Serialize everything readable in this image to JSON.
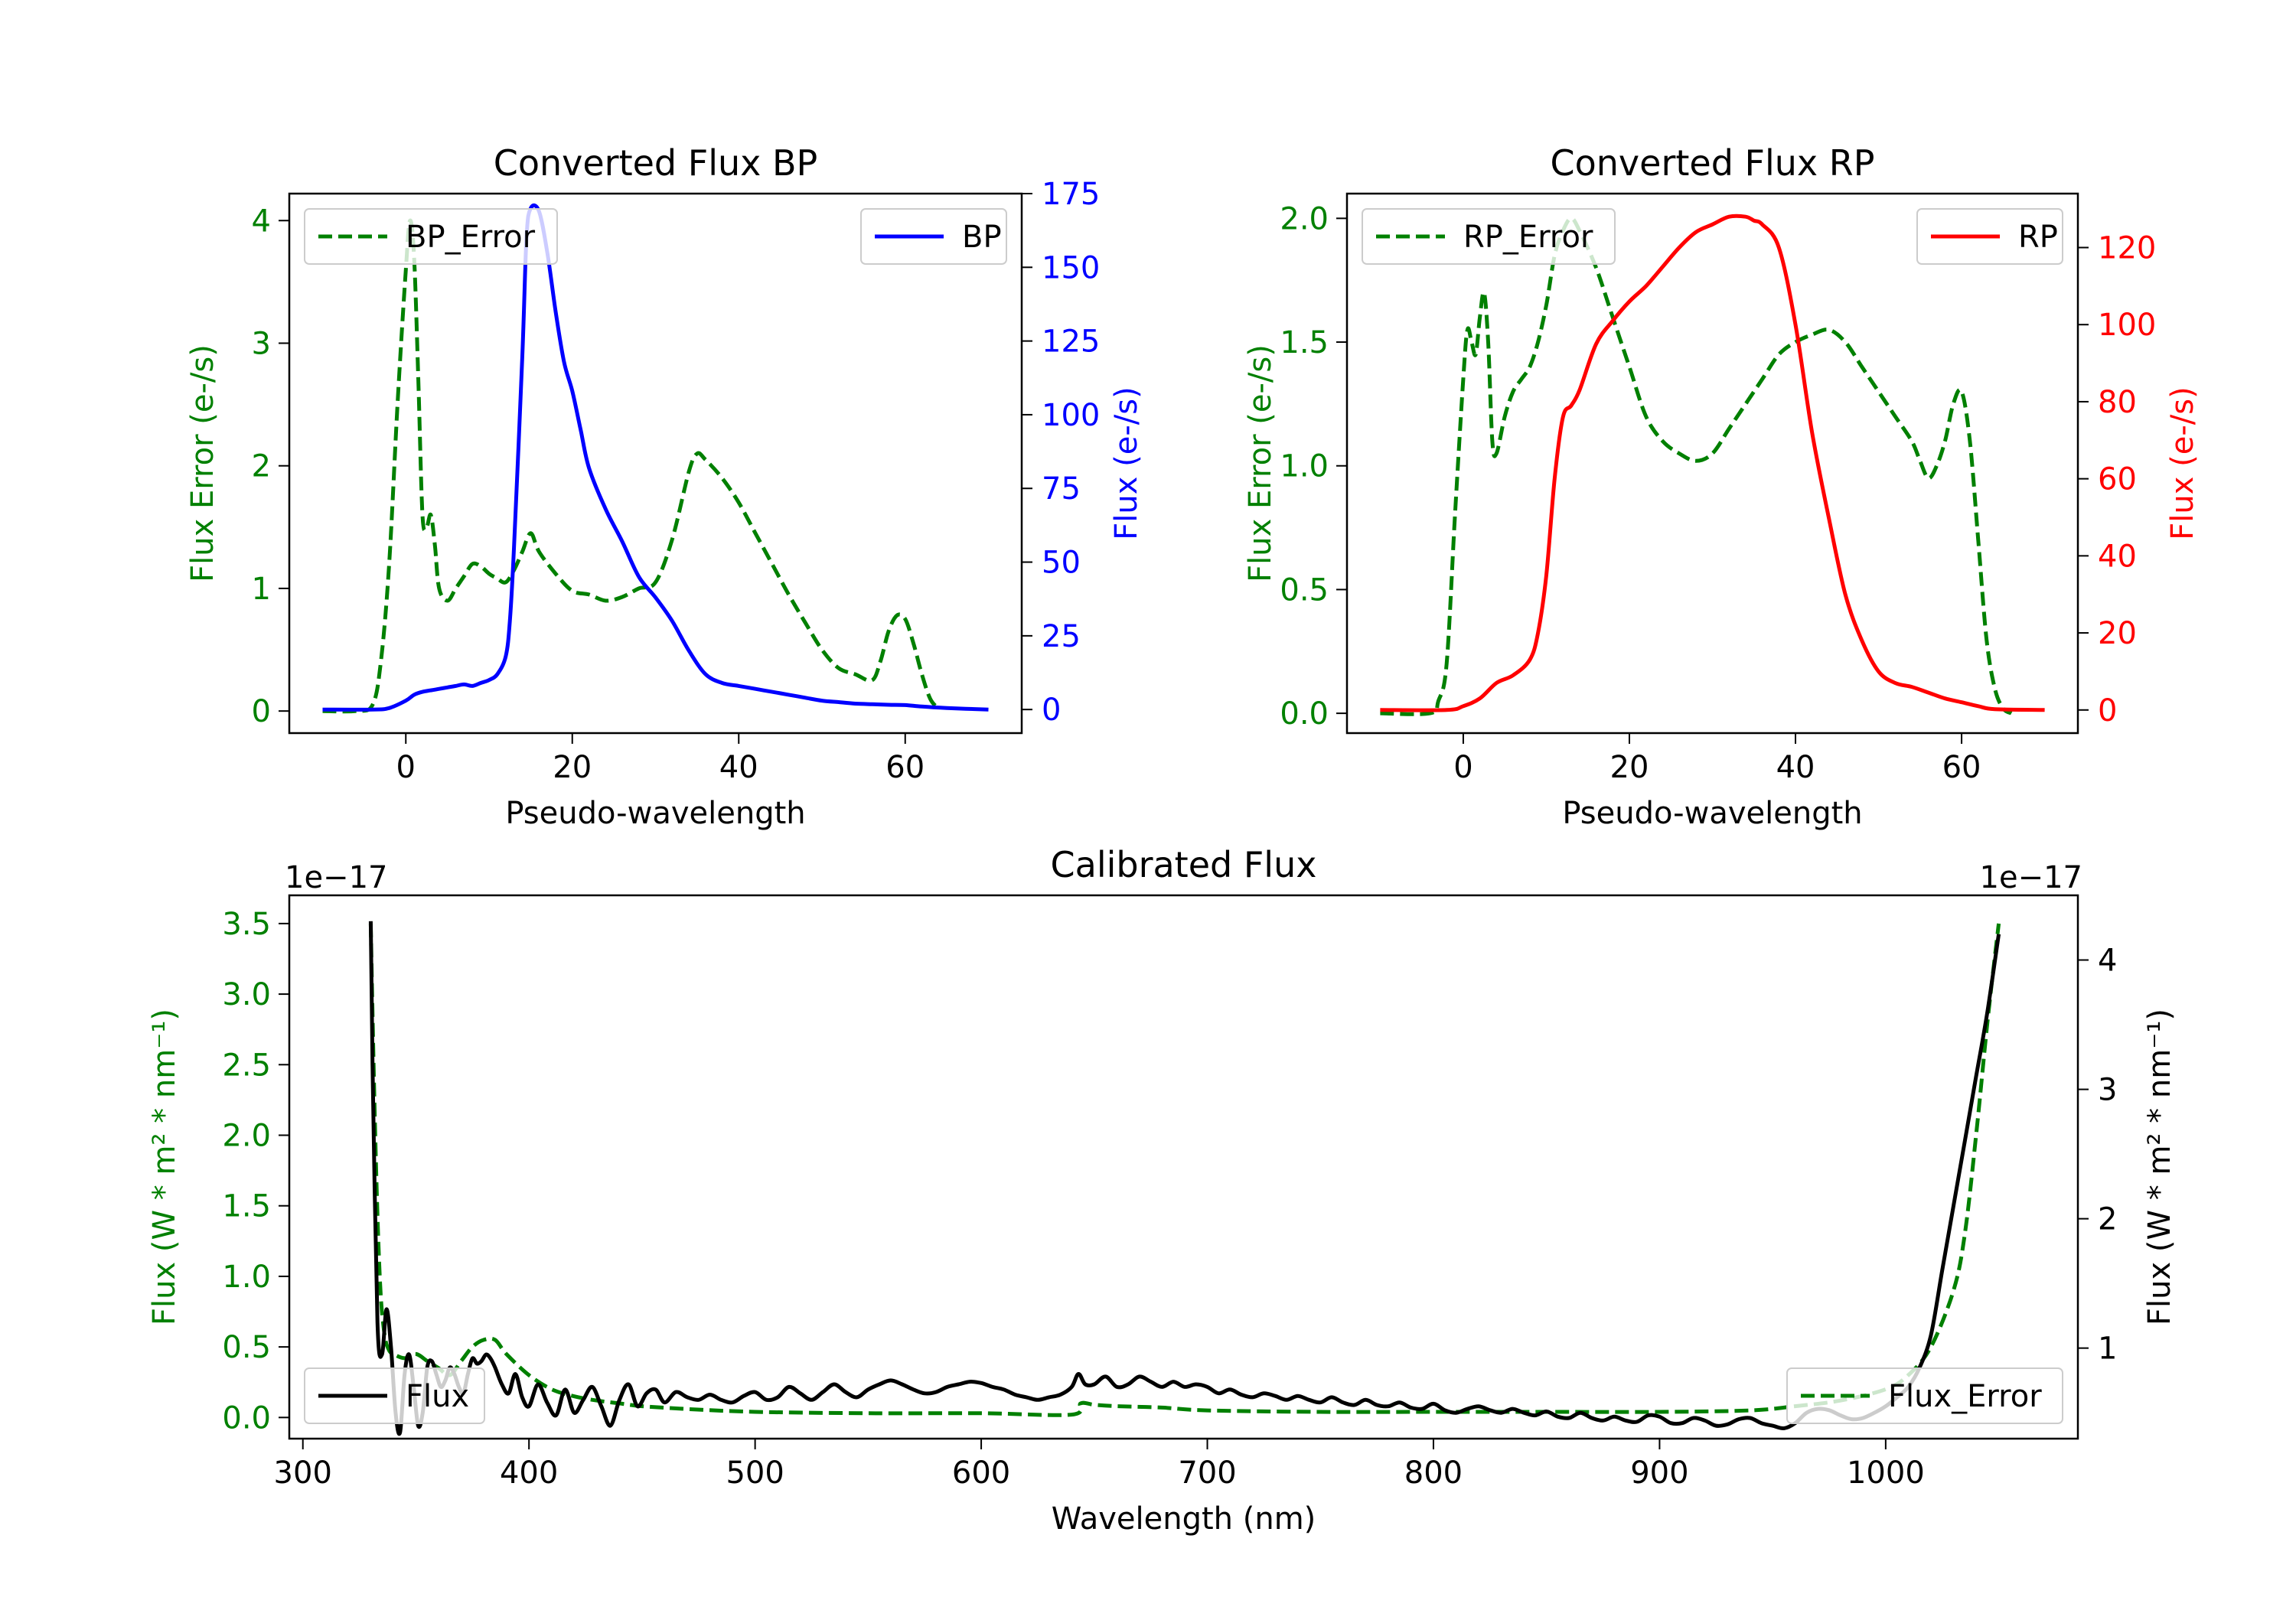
{
  "chart_data": [
    {
      "id": "bp",
      "type": "line",
      "title": "Converted Flux BP",
      "xlabel": "Pseudo-wavelength",
      "xlim": [
        -14,
        74
      ],
      "xticks": [
        0,
        20,
        40,
        60
      ],
      "left_axis": {
        "label": "Flux Error (e-/s)",
        "color": "#008000",
        "lim": [
          -0.18,
          4.22
        ],
        "ticks": [
          0,
          1,
          2,
          3,
          4
        ]
      },
      "right_axis": {
        "label": "Flux (e-/s)",
        "color": "#0000ff",
        "lim": [
          -8,
          175
        ],
        "ticks": [
          0,
          25,
          50,
          75,
          100,
          125,
          150,
          175
        ]
      },
      "legend_left": "top-left",
      "legend_right": "top-right",
      "series": [
        {
          "name": "BP_Error",
          "axis": "left",
          "color": "#008000",
          "dashed": true,
          "x": [
            -10,
            -6,
            -4,
            -3,
            -2,
            -1,
            0,
            0.5,
            1,
            1.5,
            2,
            2.5,
            3,
            3.5,
            4,
            5,
            6,
            7,
            8,
            9,
            10,
            11,
            12,
            13,
            14,
            15,
            16,
            18,
            20,
            22,
            24,
            26,
            28,
            30,
            32,
            34,
            35,
            36,
            38,
            40,
            42,
            44,
            46,
            48,
            50,
            52,
            54,
            56,
            57,
            58,
            59,
            60,
            61,
            62,
            63,
            64
          ],
          "y": [
            0,
            0,
            0.05,
            0.4,
            1.2,
            2.5,
            3.6,
            4.0,
            3.7,
            2.7,
            1.6,
            1.5,
            1.6,
            1.35,
            1.0,
            0.9,
            1.0,
            1.1,
            1.2,
            1.18,
            1.12,
            1.08,
            1.05,
            1.15,
            1.3,
            1.45,
            1.3,
            1.12,
            0.98,
            0.95,
            0.9,
            0.93,
            1.0,
            1.05,
            1.4,
            1.95,
            2.1,
            2.05,
            1.9,
            1.7,
            1.45,
            1.2,
            0.95,
            0.72,
            0.5,
            0.35,
            0.3,
            0.25,
            0.4,
            0.65,
            0.78,
            0.75,
            0.55,
            0.3,
            0.1,
            0.02
          ]
        },
        {
          "name": "BP",
          "axis": "right",
          "color": "#0000ff",
          "dashed": false,
          "x": [
            -10,
            -4,
            -2,
            0,
            1,
            2,
            3,
            4,
            5,
            6,
            7,
            8,
            9,
            10,
            11,
            12,
            12.5,
            13,
            14,
            14.5,
            15,
            16,
            17,
            18,
            19,
            20,
            21,
            22,
            24,
            26,
            28,
            30,
            32,
            34,
            36,
            38,
            40,
            42,
            44,
            46,
            48,
            50,
            52,
            54,
            56,
            58,
            60,
            62,
            65,
            70
          ],
          "y": [
            0,
            0,
            0.5,
            3,
            5,
            6,
            6.5,
            7,
            7.5,
            8,
            8.5,
            8,
            9,
            10,
            12,
            18,
            30,
            55,
            120,
            160,
            170,
            169,
            155,
            135,
            118,
            108,
            95,
            82,
            68,
            57,
            45,
            38,
            30,
            20,
            12,
            9,
            8,
            7,
            6,
            5,
            4,
            3,
            2.5,
            2,
            1.8,
            1.6,
            1.5,
            1,
            0.5,
            0
          ]
        }
      ]
    },
    {
      "id": "rp",
      "type": "line",
      "title": "Converted Flux RP",
      "xlabel": "Pseudo-wavelength",
      "xlim": [
        -14,
        74
      ],
      "xticks": [
        0,
        20,
        40,
        60
      ],
      "left_axis": {
        "label": "Flux Error (e-/s)",
        "color": "#008000",
        "lim": [
          -0.08,
          2.1
        ],
        "ticks": [
          0.0,
          0.5,
          1.0,
          1.5,
          2.0
        ],
        "tick_decimals": 1
      },
      "right_axis": {
        "label": "Flux (e-/s)",
        "color": "#ff0000",
        "lim": [
          -6,
          134
        ],
        "ticks": [
          0,
          20,
          40,
          60,
          80,
          100,
          120
        ]
      },
      "legend_left": "top-left",
      "legend_right": "top-right",
      "series": [
        {
          "name": "RP_Error",
          "axis": "left",
          "color": "#008000",
          "dashed": true,
          "x": [
            -10,
            -4,
            -3,
            -2,
            -1,
            0,
            0.5,
            1,
            1.5,
            2,
            2.5,
            3,
            3.5,
            4,
            5,
            6,
            7,
            8,
            9,
            10,
            11,
            12,
            13,
            14,
            16,
            18,
            20,
            22,
            24,
            26,
            28,
            30,
            32,
            34,
            36,
            38,
            40,
            42,
            44,
            46,
            48,
            50,
            52,
            54,
            55,
            56,
            57,
            58,
            59,
            60,
            61,
            62,
            63,
            64,
            65,
            66
          ],
          "y": [
            0,
            0,
            0.05,
            0.2,
            0.8,
            1.35,
            1.55,
            1.5,
            1.45,
            1.6,
            1.7,
            1.5,
            1.1,
            1.05,
            1.2,
            1.3,
            1.35,
            1.4,
            1.5,
            1.65,
            1.85,
            1.95,
            2.0,
            1.95,
            1.8,
            1.6,
            1.4,
            1.2,
            1.1,
            1.05,
            1.02,
            1.05,
            1.15,
            1.25,
            1.35,
            1.45,
            1.5,
            1.53,
            1.55,
            1.5,
            1.4,
            1.3,
            1.2,
            1.1,
            1.02,
            0.95,
            1.0,
            1.1,
            1.25,
            1.3,
            1.1,
            0.7,
            0.3,
            0.1,
            0.02,
            0
          ]
        },
        {
          "name": "RP",
          "axis": "right",
          "color": "#ff0000",
          "dashed": false,
          "x": [
            -10,
            -2,
            0,
            2,
            4,
            6,
            8,
            9,
            10,
            11,
            12,
            13,
            14,
            16,
            18,
            20,
            22,
            24,
            26,
            28,
            30,
            32,
            34,
            35,
            36,
            38,
            40,
            42,
            44,
            46,
            48,
            50,
            52,
            54,
            56,
            58,
            60,
            62,
            64,
            70
          ],
          "y": [
            0,
            0,
            1,
            3,
            7,
            9,
            13,
            20,
            35,
            60,
            76,
            79,
            83,
            95,
            101,
            106,
            110,
            115,
            120,
            124,
            126,
            128,
            128,
            127,
            126,
            120,
            100,
            72,
            50,
            30,
            18,
            10,
            7,
            6,
            4.5,
            3,
            2,
            1,
            0.2,
            0
          ]
        }
      ]
    },
    {
      "id": "cal",
      "type": "line",
      "title": "Calibrated Flux",
      "xlabel": "Wavelength (nm)",
      "xlim": [
        294,
        1085
      ],
      "xticks": [
        300,
        400,
        500,
        600,
        700,
        800,
        900,
        1000
      ],
      "left_axis": {
        "label": "Flux (W * m² * nm⁻¹)",
        "color": "#008000",
        "lim": [
          -0.15,
          3.7
        ],
        "ticks": [
          0.0,
          0.5,
          1.0,
          1.5,
          2.0,
          2.5,
          3.0,
          3.5
        ],
        "tick_decimals": 1,
        "offset_text": "1e−17"
      },
      "right_axis": {
        "label": "Flux (W * m² * nm⁻¹)",
        "color": "#000000",
        "lim": [
          0.3,
          4.5
        ],
        "ticks": [
          1,
          2,
          3,
          4
        ],
        "offset_text": "1e−17"
      },
      "legend_left": "bottom-left",
      "legend_right": "bottom-right",
      "series": [
        {
          "name": "Flux_Error",
          "axis": "left",
          "color": "#008000",
          "dashed": true,
          "x": [
            330,
            332,
            334,
            336,
            338,
            340,
            345,
            350,
            355,
            360,
            365,
            370,
            375,
            380,
            385,
            390,
            400,
            410,
            420,
            430,
            440,
            450,
            470,
            500,
            550,
            600,
            640,
            644,
            650,
            660,
            680,
            700,
            750,
            800,
            850,
            900,
            940,
            960,
            980,
            1000,
            1010,
            1020,
            1030,
            1035,
            1040,
            1045,
            1050
          ],
          "y": [
            3.5,
            2.0,
            1.0,
            0.6,
            0.48,
            0.45,
            0.42,
            0.45,
            0.4,
            0.35,
            0.3,
            0.4,
            0.5,
            0.55,
            0.55,
            0.45,
            0.3,
            0.2,
            0.15,
            0.12,
            0.1,
            0.08,
            0.06,
            0.04,
            0.03,
            0.03,
            0.02,
            0.1,
            0.09,
            0.08,
            0.07,
            0.05,
            0.04,
            0.04,
            0.04,
            0.04,
            0.05,
            0.08,
            0.12,
            0.2,
            0.3,
            0.5,
            0.9,
            1.3,
            2.0,
            2.8,
            3.5
          ]
        },
        {
          "name": "Flux",
          "axis": "right",
          "color": "#000000",
          "dashed": false,
          "x": [
            330,
            331,
            333,
            335,
            337,
            339,
            341,
            343,
            345,
            347,
            349,
            351,
            353,
            355,
            357,
            359,
            361,
            363,
            365,
            367,
            369,
            371,
            373,
            375,
            377,
            379,
            381,
            383,
            385,
            388,
            391,
            394,
            397,
            400,
            404,
            408,
            412,
            416,
            420,
            424,
            428,
            432,
            436,
            440,
            444,
            448,
            452,
            456,
            460,
            465,
            470,
            475,
            480,
            485,
            490,
            495,
            500,
            505,
            510,
            515,
            520,
            525,
            530,
            535,
            540,
            545,
            550,
            555,
            560,
            565,
            570,
            575,
            580,
            585,
            590,
            595,
            600,
            605,
            610,
            615,
            620,
            625,
            630,
            635,
            640,
            643,
            646,
            650,
            655,
            660,
            665,
            670,
            675,
            680,
            685,
            690,
            695,
            700,
            705,
            710,
            715,
            720,
            725,
            730,
            735,
            740,
            745,
            750,
            755,
            760,
            765,
            770,
            775,
            780,
            785,
            790,
            795,
            800,
            805,
            810,
            815,
            820,
            825,
            830,
            835,
            840,
            845,
            850,
            855,
            860,
            865,
            870,
            875,
            880,
            885,
            890,
            895,
            900,
            905,
            910,
            915,
            920,
            925,
            930,
            935,
            940,
            945,
            950,
            955,
            960,
            965,
            970,
            975,
            980,
            985,
            990,
            995,
            1000,
            1005,
            1010,
            1015,
            1020,
            1025,
            1030,
            1035,
            1040,
            1045,
            1050
          ],
          "y": [
            4.3,
            3.0,
            1.2,
            0.95,
            1.3,
            1.0,
            0.5,
            0.35,
            0.8,
            0.95,
            0.7,
            0.4,
            0.5,
            0.85,
            0.9,
            0.8,
            0.7,
            0.75,
            0.85,
            0.8,
            0.7,
            0.65,
            0.8,
            0.92,
            0.88,
            0.9,
            0.95,
            0.92,
            0.85,
            0.72,
            0.65,
            0.8,
            0.62,
            0.55,
            0.72,
            0.58,
            0.48,
            0.68,
            0.5,
            0.6,
            0.7,
            0.55,
            0.4,
            0.6,
            0.72,
            0.55,
            0.65,
            0.68,
            0.58,
            0.66,
            0.62,
            0.6,
            0.64,
            0.6,
            0.58,
            0.63,
            0.66,
            0.6,
            0.62,
            0.7,
            0.65,
            0.6,
            0.66,
            0.72,
            0.66,
            0.62,
            0.68,
            0.72,
            0.75,
            0.72,
            0.68,
            0.65,
            0.66,
            0.7,
            0.72,
            0.74,
            0.73,
            0.7,
            0.68,
            0.64,
            0.62,
            0.6,
            0.62,
            0.64,
            0.7,
            0.8,
            0.72,
            0.72,
            0.78,
            0.7,
            0.72,
            0.78,
            0.74,
            0.7,
            0.74,
            0.7,
            0.72,
            0.7,
            0.65,
            0.68,
            0.64,
            0.62,
            0.65,
            0.63,
            0.6,
            0.63,
            0.6,
            0.58,
            0.62,
            0.58,
            0.56,
            0.6,
            0.56,
            0.55,
            0.58,
            0.54,
            0.53,
            0.57,
            0.52,
            0.5,
            0.53,
            0.55,
            0.52,
            0.5,
            0.53,
            0.5,
            0.48,
            0.51,
            0.47,
            0.46,
            0.5,
            0.46,
            0.44,
            0.47,
            0.44,
            0.43,
            0.48,
            0.47,
            0.42,
            0.42,
            0.46,
            0.44,
            0.4,
            0.41,
            0.45,
            0.46,
            0.42,
            0.4,
            0.38,
            0.42,
            0.5,
            0.53,
            0.52,
            0.48,
            0.45,
            0.46,
            0.5,
            0.55,
            0.62,
            0.7,
            0.85,
            1.1,
            1.6,
            2.1,
            2.6,
            3.1,
            3.6,
            4.2
          ]
        }
      ]
    }
  ]
}
